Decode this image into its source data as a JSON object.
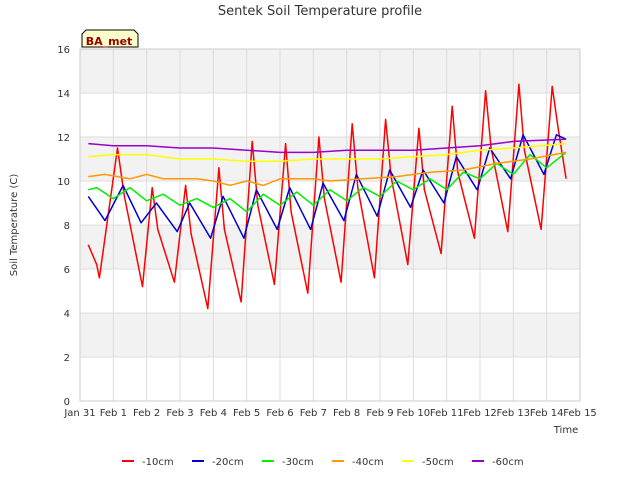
{
  "chart_data": {
    "type": "line",
    "title": "Sentek Soil Temperature profile",
    "xlabel": "Time",
    "ylabel": "Soil Temperature (C)",
    "station_label": "BA_met",
    "ylim": [
      0,
      16
    ],
    "yticks": [
      0,
      2,
      4,
      6,
      8,
      10,
      12,
      14,
      16
    ],
    "xlim": [
      "2023-01-31",
      "2023-02-15"
    ],
    "xticks": [
      "Jan 31",
      "Feb 1",
      "Feb 2",
      "Feb 3",
      "Feb 4",
      "Feb 5",
      "Feb 6",
      "Feb 7",
      "Feb 8",
      "Feb 9",
      "Feb 10",
      "Feb 11",
      "Feb 12",
      "Feb 13",
      "Feb 14",
      "Feb 15"
    ],
    "grid": true,
    "legend_position": "bottom",
    "series": [
      {
        "name": "-10cm",
        "color": "#ff0000",
        "x": [
          "2023-01-31 06:00",
          "2023-01-31 12:00",
          "2023-01-31 14:00",
          "2023-02-01 03:00",
          "2023-02-01 08:00",
          "2023-02-01 21:00",
          "2023-02-02 04:00",
          "2023-02-02 08:00",
          "2023-02-02 20:00",
          "2023-02-03 04:00",
          "2023-02-03 08:00",
          "2023-02-03 20:00",
          "2023-02-04 04:00",
          "2023-02-04 08:00",
          "2023-02-04 20:00",
          "2023-02-05 04:00",
          "2023-02-05 08:00",
          "2023-02-05 20:00",
          "2023-02-06 04:00",
          "2023-02-06 08:00",
          "2023-02-06 20:00",
          "2023-02-07 04:00",
          "2023-02-07 08:00",
          "2023-02-07 20:00",
          "2023-02-08 04:00",
          "2023-02-08 08:00",
          "2023-02-08 20:00",
          "2023-02-09 04:00",
          "2023-02-09 08:00",
          "2023-02-09 20:00",
          "2023-02-10 04:00",
          "2023-02-10 08:00",
          "2023-02-10 20:00",
          "2023-02-11 04:00",
          "2023-02-11 08:00",
          "2023-02-11 20:00",
          "2023-02-12 04:00",
          "2023-02-12 08:00",
          "2023-02-12 20:00",
          "2023-02-13 04:00",
          "2023-02-13 08:00",
          "2023-02-13 20:00",
          "2023-02-14 04:00",
          "2023-02-14 08:00",
          "2023-02-14 14:00"
        ],
        "y": [
          7.1,
          6.2,
          5.6,
          11.5,
          9.3,
          5.2,
          9.7,
          7.8,
          5.4,
          9.8,
          7.6,
          4.2,
          10.6,
          7.8,
          4.5,
          11.8,
          8.9,
          5.3,
          11.7,
          8.6,
          4.9,
          12.0,
          9.2,
          5.4,
          12.6,
          9.7,
          5.6,
          12.8,
          10.2,
          6.2,
          12.4,
          9.6,
          6.7,
          13.4,
          10.4,
          7.4,
          14.1,
          11.5,
          7.7,
          14.4,
          11.4,
          7.8,
          14.3,
          12.5,
          10.1
        ]
      },
      {
        "name": "-20cm",
        "color": "#0000cc",
        "x": [
          "2023-01-31 06:00",
          "2023-01-31 18:00",
          "2023-02-01 07:00",
          "2023-02-01 20:00",
          "2023-02-02 07:00",
          "2023-02-02 22:00",
          "2023-02-03 07:00",
          "2023-02-03 22:00",
          "2023-02-04 07:00",
          "2023-02-04 22:00",
          "2023-02-05 07:00",
          "2023-02-05 22:00",
          "2023-02-06 07:00",
          "2023-02-06 22:00",
          "2023-02-07 07:00",
          "2023-02-07 22:00",
          "2023-02-08 07:00",
          "2023-02-08 22:00",
          "2023-02-09 07:00",
          "2023-02-09 22:00",
          "2023-02-10 07:00",
          "2023-02-10 22:00",
          "2023-02-11 07:00",
          "2023-02-11 22:00",
          "2023-02-12 07:00",
          "2023-02-12 22:00",
          "2023-02-13 07:00",
          "2023-02-13 22:00",
          "2023-02-14 07:00",
          "2023-02-14 14:00"
        ],
        "y": [
          9.3,
          8.2,
          9.8,
          8.1,
          9.0,
          7.7,
          9.0,
          7.4,
          9.3,
          7.4,
          9.6,
          7.8,
          9.7,
          7.8,
          9.9,
          8.2,
          10.3,
          8.4,
          10.5,
          8.8,
          10.5,
          9.0,
          11.1,
          9.6,
          11.5,
          10.1,
          12.1,
          10.3,
          12.1,
          11.9
        ]
      },
      {
        "name": "-30cm",
        "color": "#00ee00",
        "x": [
          "2023-01-31 06:00",
          "2023-01-31 12:00",
          "2023-02-01 00:00",
          "2023-02-01 12:00",
          "2023-02-02 00:00",
          "2023-02-02 12:00",
          "2023-02-03 00:00",
          "2023-02-03 12:00",
          "2023-02-04 00:00",
          "2023-02-04 12:00",
          "2023-02-05 00:00",
          "2023-02-05 12:00",
          "2023-02-06 00:00",
          "2023-02-06 12:00",
          "2023-02-07 00:00",
          "2023-02-07 12:00",
          "2023-02-08 00:00",
          "2023-02-08 12:00",
          "2023-02-09 00:00",
          "2023-02-09 12:00",
          "2023-02-10 00:00",
          "2023-02-10 12:00",
          "2023-02-11 00:00",
          "2023-02-11 12:00",
          "2023-02-12 00:00",
          "2023-02-12 12:00",
          "2023-02-13 00:00",
          "2023-02-13 12:00",
          "2023-02-14 00:00",
          "2023-02-14 14:00"
        ],
        "y": [
          9.6,
          9.7,
          9.2,
          9.7,
          9.1,
          9.4,
          8.9,
          9.2,
          8.8,
          9.2,
          8.6,
          9.4,
          8.9,
          9.5,
          8.9,
          9.6,
          9.1,
          9.7,
          9.3,
          10.0,
          9.6,
          10.1,
          9.6,
          10.4,
          10.1,
          10.8,
          10.3,
          11.2,
          10.6,
          11.3
        ]
      },
      {
        "name": "-40cm",
        "color": "#ff9900",
        "x": [
          "2023-01-31 06:00",
          "2023-01-31 18:00",
          "2023-02-01 12:00",
          "2023-02-02 00:00",
          "2023-02-02 12:00",
          "2023-02-03 12:00",
          "2023-02-04 00:00",
          "2023-02-04 12:00",
          "2023-02-05 00:00",
          "2023-02-05 12:00",
          "2023-02-06 00:00",
          "2023-02-07 00:00",
          "2023-02-07 12:00",
          "2023-02-08 12:00",
          "2023-02-09 12:00",
          "2023-02-10 12:00",
          "2023-02-11 12:00",
          "2023-02-12 12:00",
          "2023-02-13 12:00",
          "2023-02-14 14:00"
        ],
        "y": [
          10.2,
          10.3,
          10.1,
          10.3,
          10.1,
          10.1,
          10.0,
          9.8,
          10.0,
          9.8,
          10.1,
          10.1,
          10.0,
          10.1,
          10.2,
          10.4,
          10.5,
          10.8,
          11.0,
          11.3
        ]
      },
      {
        "name": "-50cm",
        "color": "#ffff00",
        "x": [
          "2023-01-31 06:00",
          "2023-02-01 00:00",
          "2023-02-02 00:00",
          "2023-02-03 00:00",
          "2023-02-04 00:00",
          "2023-02-05 00:00",
          "2023-02-06 00:00",
          "2023-02-07 00:00",
          "2023-02-08 00:00",
          "2023-02-09 00:00",
          "2023-02-10 00:00",
          "2023-02-11 00:00",
          "2023-02-12 00:00",
          "2023-02-13 00:00",
          "2023-02-14 14:00"
        ],
        "y": [
          11.1,
          11.2,
          11.2,
          11.0,
          11.0,
          10.9,
          10.9,
          11.0,
          11.0,
          11.0,
          11.1,
          11.2,
          11.4,
          11.5,
          11.7
        ]
      },
      {
        "name": "-60cm",
        "color": "#9900cc",
        "x": [
          "2023-01-31 06:00",
          "2023-02-01 00:00",
          "2023-02-02 00:00",
          "2023-02-03 00:00",
          "2023-02-04 00:00",
          "2023-02-05 00:00",
          "2023-02-06 00:00",
          "2023-02-07 00:00",
          "2023-02-08 00:00",
          "2023-02-09 00:00",
          "2023-02-10 00:00",
          "2023-02-11 00:00",
          "2023-02-12 00:00",
          "2023-02-13 00:00",
          "2023-02-14 14:00"
        ],
        "y": [
          11.7,
          11.6,
          11.6,
          11.5,
          11.5,
          11.4,
          11.3,
          11.3,
          11.4,
          11.4,
          11.4,
          11.5,
          11.6,
          11.8,
          11.9
        ]
      }
    ]
  }
}
